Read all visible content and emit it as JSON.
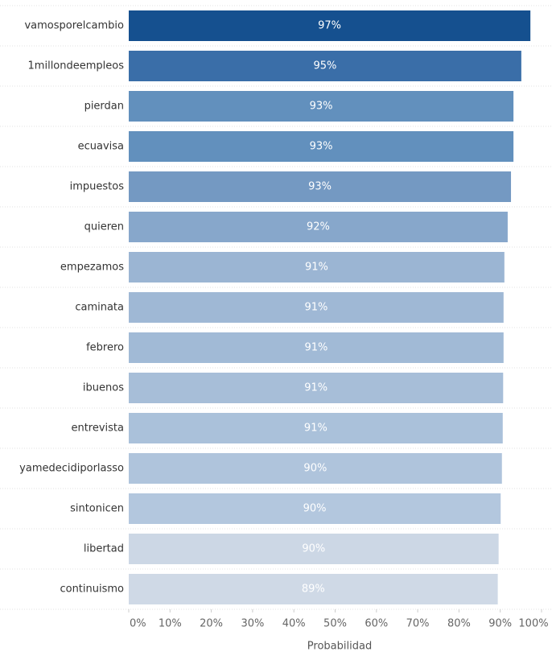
{
  "chart_data": {
    "type": "bar",
    "orientation": "horizontal",
    "categories": [
      "vamosporelcambio",
      "1millondeempleos",
      "pierdan",
      "ecuavisa",
      "impuestos",
      "quieren",
      "empezamos",
      "caminata",
      "febrero",
      "ibuenos",
      "entrevista",
      "yamedecidiporlasso",
      "sintonicen",
      "libertad",
      "continuismo"
    ],
    "values": [
      97.3,
      95.1,
      93.2,
      93.2,
      92.6,
      91.8,
      91.0,
      90.8,
      90.8,
      90.7,
      90.6,
      90.4,
      90.1,
      89.6,
      89.4
    ],
    "value_labels": [
      "97%",
      "95%",
      "93%",
      "93%",
      "93%",
      "92%",
      "91%",
      "91%",
      "91%",
      "91%",
      "91%",
      "90%",
      "90%",
      "90%",
      "89%"
    ],
    "colors": [
      "#15508f",
      "#3a6ea8",
      "#6290bd",
      "#6290bd",
      "#7499c2",
      "#87a7cb",
      "#9bb5d3",
      "#9fb8d5",
      "#a1bad6",
      "#a7bed8",
      "#aac1da",
      "#afc4dc",
      "#b3c7de",
      "#ccd7e5",
      "#cfd9e6"
    ],
    "xlim": [
      0,
      100
    ],
    "xticks": [
      {
        "value": 0,
        "label": "0%"
      },
      {
        "value": 10,
        "label": "10%"
      },
      {
        "value": 20,
        "label": "20%"
      },
      {
        "value": 30,
        "label": "30%"
      },
      {
        "value": 40,
        "label": "40%"
      },
      {
        "value": 50,
        "label": "50%"
      },
      {
        "value": 60,
        "label": "60%"
      },
      {
        "value": 70,
        "label": "70%"
      },
      {
        "value": 80,
        "label": "80%"
      },
      {
        "value": 90,
        "label": "90%"
      },
      {
        "value": 100,
        "label": "100%"
      }
    ],
    "xlabel": "Probabilidad"
  }
}
